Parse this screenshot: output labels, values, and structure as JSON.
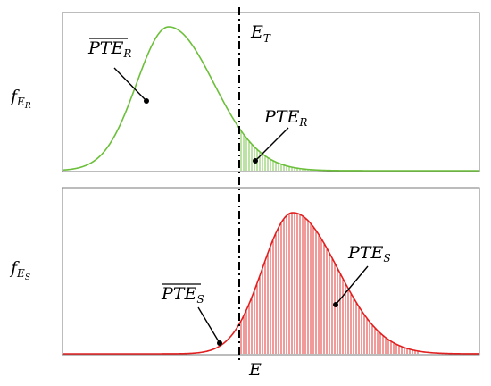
{
  "colors": {
    "receiver": "#6cbf3a",
    "sender": "#e02020",
    "frame": "#7a7a7a",
    "threshold": "#000000"
  },
  "axes": {
    "top_ylabel": {
      "main": "f",
      "sub": "E",
      "subsub": "R"
    },
    "bottom_ylabel": {
      "main": "f",
      "sub": "E",
      "subsub": "S"
    },
    "xlabel": "E"
  },
  "threshold_label": {
    "main": "E",
    "sub": "T"
  },
  "annotations": {
    "pte_r_bar": {
      "main": "PTE",
      "sub": "R",
      "overline": true
    },
    "pte_r": {
      "main": "PTE",
      "sub": "R",
      "overline": false
    },
    "pte_s_bar": {
      "main": "PTE",
      "sub": "S",
      "overline": true
    },
    "pte_s": {
      "main": "PTE",
      "sub": "S",
      "overline": false
    }
  }
}
